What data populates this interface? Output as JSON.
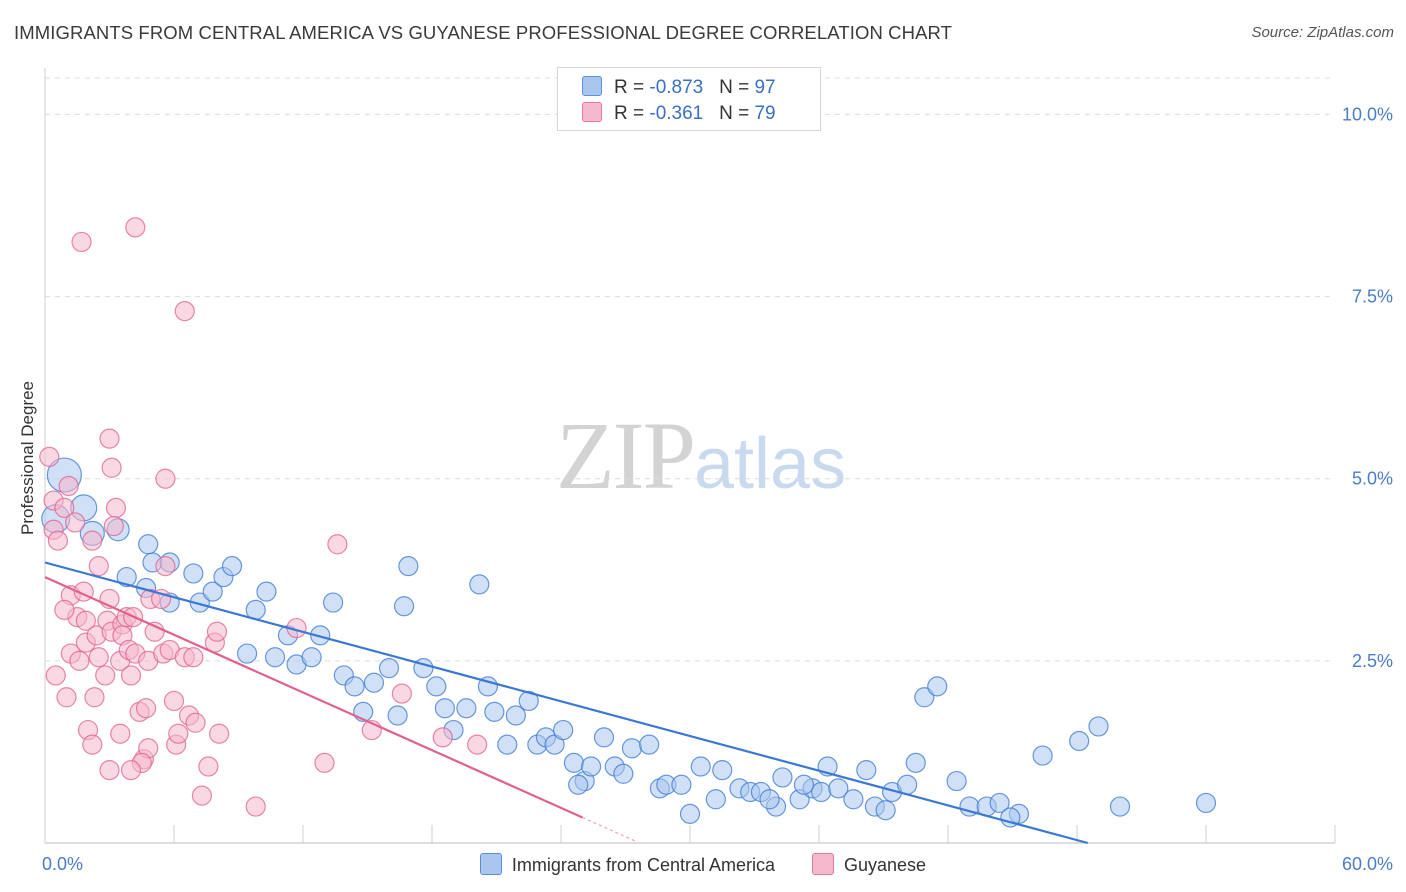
{
  "title": "IMMIGRANTS FROM CENTRAL AMERICA VS GUYANESE PROFESSIONAL DEGREE CORRELATION CHART",
  "source": "Source: ZipAtlas.com",
  "watermark": {
    "zip": "ZIP",
    "atlas": "atlas"
  },
  "legend": {
    "rows": [
      {
        "r_label": "R = ",
        "r_value": "-0.873",
        "n_label": "N = ",
        "n_value": "97",
        "color": "#a9c6ee"
      },
      {
        "r_label": "R = ",
        "r_value": "-0.361",
        "n_label": "N = ",
        "n_value": "79",
        "color": "#f5b8cc"
      }
    ]
  },
  "bottom_legend": [
    "Immigrants from Central America",
    "Guyanese"
  ],
  "chart_data": {
    "type": "scatter",
    "title": "IMMIGRANTS FROM CENTRAL AMERICA VS GUYANESE PROFESSIONAL DEGREE CORRELATION CHART",
    "xlabel": "",
    "ylabel": "Professional Degree",
    "xlim": [
      0,
      60
    ],
    "ylim": [
      0,
      10.5
    ],
    "x_tick_labels": [
      "0.0%",
      "60.0%"
    ],
    "y_ticks": [
      2.5,
      5.0,
      7.5,
      10.0
    ],
    "y_tick_labels": [
      "2.5%",
      "5.0%",
      "7.5%",
      "10.0%"
    ],
    "grid": true,
    "series": [
      {
        "name": "Immigrants from Central America",
        "color": "#3a78d4",
        "fill": "#a9c6ee",
        "trend": {
          "x0": 0,
          "y0": 3.85,
          "x1": 48.5,
          "y1": 0.0
        },
        "points": [
          [
            0.5,
            4.45
          ],
          [
            0.9,
            5.05
          ],
          [
            1.8,
            4.6
          ],
          [
            2.2,
            4.25
          ],
          [
            3.4,
            4.3
          ],
          [
            3.8,
            3.65
          ],
          [
            5.0,
            3.85
          ],
          [
            4.7,
            3.5
          ],
          [
            4.8,
            4.1
          ],
          [
            5.8,
            3.3
          ],
          [
            5.8,
            3.85
          ],
          [
            6.9,
            3.7
          ],
          [
            7.2,
            3.3
          ],
          [
            7.8,
            3.45
          ],
          [
            8.3,
            3.65
          ],
          [
            8.7,
            3.8
          ],
          [
            9.4,
            2.6
          ],
          [
            9.8,
            3.2
          ],
          [
            10.3,
            3.45
          ],
          [
            10.7,
            2.55
          ],
          [
            11.3,
            2.85
          ],
          [
            11.7,
            2.45
          ],
          [
            12.4,
            2.55
          ],
          [
            12.8,
            2.85
          ],
          [
            13.4,
            3.3
          ],
          [
            13.9,
            2.3
          ],
          [
            14.4,
            2.15
          ],
          [
            14.8,
            1.8
          ],
          [
            15.3,
            2.2
          ],
          [
            16.0,
            2.4
          ],
          [
            16.4,
            1.75
          ],
          [
            16.9,
            3.8
          ],
          [
            16.7,
            3.25
          ],
          [
            17.6,
            2.4
          ],
          [
            18.2,
            2.15
          ],
          [
            18.6,
            1.85
          ],
          [
            19.0,
            1.55
          ],
          [
            19.6,
            1.85
          ],
          [
            20.2,
            3.55
          ],
          [
            20.6,
            2.15
          ],
          [
            20.9,
            1.8
          ],
          [
            21.5,
            1.35
          ],
          [
            21.9,
            1.75
          ],
          [
            22.5,
            1.95
          ],
          [
            22.9,
            1.35
          ],
          [
            23.3,
            1.45
          ],
          [
            23.7,
            1.35
          ],
          [
            24.1,
            1.55
          ],
          [
            24.6,
            1.1
          ],
          [
            25.1,
            0.85
          ],
          [
            25.4,
            1.05
          ],
          [
            26.0,
            1.45
          ],
          [
            26.5,
            1.05
          ],
          [
            26.9,
            0.95
          ],
          [
            27.3,
            1.3
          ],
          [
            28.1,
            1.35
          ],
          [
            28.6,
            0.75
          ],
          [
            28.9,
            0.8
          ],
          [
            29.6,
            0.8
          ],
          [
            30.0,
            0.4
          ],
          [
            30.5,
            1.05
          ],
          [
            31.2,
            0.6
          ],
          [
            31.5,
            1.0
          ],
          [
            32.3,
            0.75
          ],
          [
            32.8,
            0.7
          ],
          [
            33.3,
            0.7
          ],
          [
            34.0,
            0.5
          ],
          [
            34.3,
            0.9
          ],
          [
            35.1,
            0.6
          ],
          [
            35.7,
            0.75
          ],
          [
            36.1,
            0.7
          ],
          [
            36.4,
            1.05
          ],
          [
            36.9,
            0.75
          ],
          [
            37.6,
            0.6
          ],
          [
            38.2,
            1.0
          ],
          [
            38.6,
            0.5
          ],
          [
            39.1,
            0.45
          ],
          [
            39.4,
            0.7
          ],
          [
            40.1,
            0.8
          ],
          [
            40.5,
            1.1
          ],
          [
            40.9,
            2.0
          ],
          [
            41.5,
            2.15
          ],
          [
            42.4,
            0.85
          ],
          [
            43.0,
            0.5
          ],
          [
            43.8,
            0.5
          ],
          [
            44.4,
            0.55
          ],
          [
            45.3,
            0.4
          ],
          [
            46.4,
            1.2
          ],
          [
            48.1,
            1.4
          ],
          [
            49.0,
            1.6
          ],
          [
            50.0,
            0.5
          ],
          [
            54.0,
            0.55
          ],
          [
            44.9,
            0.35
          ],
          [
            35.3,
            0.8
          ],
          [
            33.7,
            0.6
          ],
          [
            24.8,
            0.8
          ]
        ]
      },
      {
        "name": "Guyanese",
        "color": "#e0608e",
        "fill": "#f5b8cc",
        "trend": {
          "x0": 0,
          "y0": 3.65,
          "x1": 25.0,
          "y1": 0.35
        },
        "points": [
          [
            0.2,
            5.3
          ],
          [
            0.4,
            4.7
          ],
          [
            0.4,
            4.3
          ],
          [
            0.6,
            4.15
          ],
          [
            0.9,
            4.6
          ],
          [
            1.1,
            4.9
          ],
          [
            1.4,
            4.4
          ],
          [
            1.2,
            3.4
          ],
          [
            1.5,
            3.1
          ],
          [
            1.2,
            2.6
          ],
          [
            1.6,
            2.5
          ],
          [
            1.8,
            3.45
          ],
          [
            1.9,
            3.05
          ],
          [
            1.9,
            2.75
          ],
          [
            2.2,
            4.15
          ],
          [
            2.5,
            3.8
          ],
          [
            2.4,
            2.85
          ],
          [
            2.5,
            2.55
          ],
          [
            2.8,
            2.3
          ],
          [
            2.9,
            3.05
          ],
          [
            3.0,
            3.35
          ],
          [
            3.1,
            2.9
          ],
          [
            3.3,
            4.6
          ],
          [
            3.5,
            2.5
          ],
          [
            3.6,
            3.0
          ],
          [
            3.6,
            2.85
          ],
          [
            3.8,
            3.1
          ],
          [
            3.9,
            2.65
          ],
          [
            4.0,
            2.3
          ],
          [
            4.1,
            3.1
          ],
          [
            4.2,
            2.6
          ],
          [
            4.4,
            1.8
          ],
          [
            4.6,
            1.15
          ],
          [
            4.7,
            1.85
          ],
          [
            4.8,
            2.5
          ],
          [
            4.8,
            1.3
          ],
          [
            4.9,
            3.35
          ],
          [
            5.1,
            2.9
          ],
          [
            5.4,
            3.35
          ],
          [
            5.5,
            2.6
          ],
          [
            5.6,
            3.8
          ],
          [
            5.8,
            2.65
          ],
          [
            6.0,
            1.95
          ],
          [
            6.1,
            1.35
          ],
          [
            6.2,
            1.5
          ],
          [
            6.5,
            2.55
          ],
          [
            6.7,
            1.75
          ],
          [
            6.9,
            2.55
          ],
          [
            7.0,
            1.65
          ],
          [
            7.3,
            0.65
          ],
          [
            7.6,
            1.05
          ],
          [
            7.9,
            2.75
          ],
          [
            8.0,
            2.9
          ],
          [
            8.1,
            1.5
          ],
          [
            1.7,
            8.25
          ],
          [
            3.0,
            5.55
          ],
          [
            3.1,
            5.15
          ],
          [
            3.2,
            4.35
          ],
          [
            4.2,
            8.45
          ],
          [
            5.6,
            5.0
          ],
          [
            6.5,
            7.3
          ],
          [
            9.8,
            0.5
          ],
          [
            11.7,
            2.95
          ],
          [
            13.0,
            1.1
          ],
          [
            13.6,
            4.1
          ],
          [
            15.2,
            1.55
          ],
          [
            16.6,
            2.05
          ],
          [
            18.5,
            1.45
          ],
          [
            20.1,
            1.35
          ],
          [
            2.0,
            1.55
          ],
          [
            3.0,
            1.0
          ],
          [
            4.5,
            1.1
          ],
          [
            4.0,
            1.0
          ],
          [
            2.3,
            2.0
          ],
          [
            0.9,
            3.2
          ],
          [
            0.5,
            2.3
          ],
          [
            1.0,
            2.0
          ],
          [
            2.2,
            1.35
          ],
          [
            3.5,
            1.5
          ]
        ]
      }
    ]
  }
}
